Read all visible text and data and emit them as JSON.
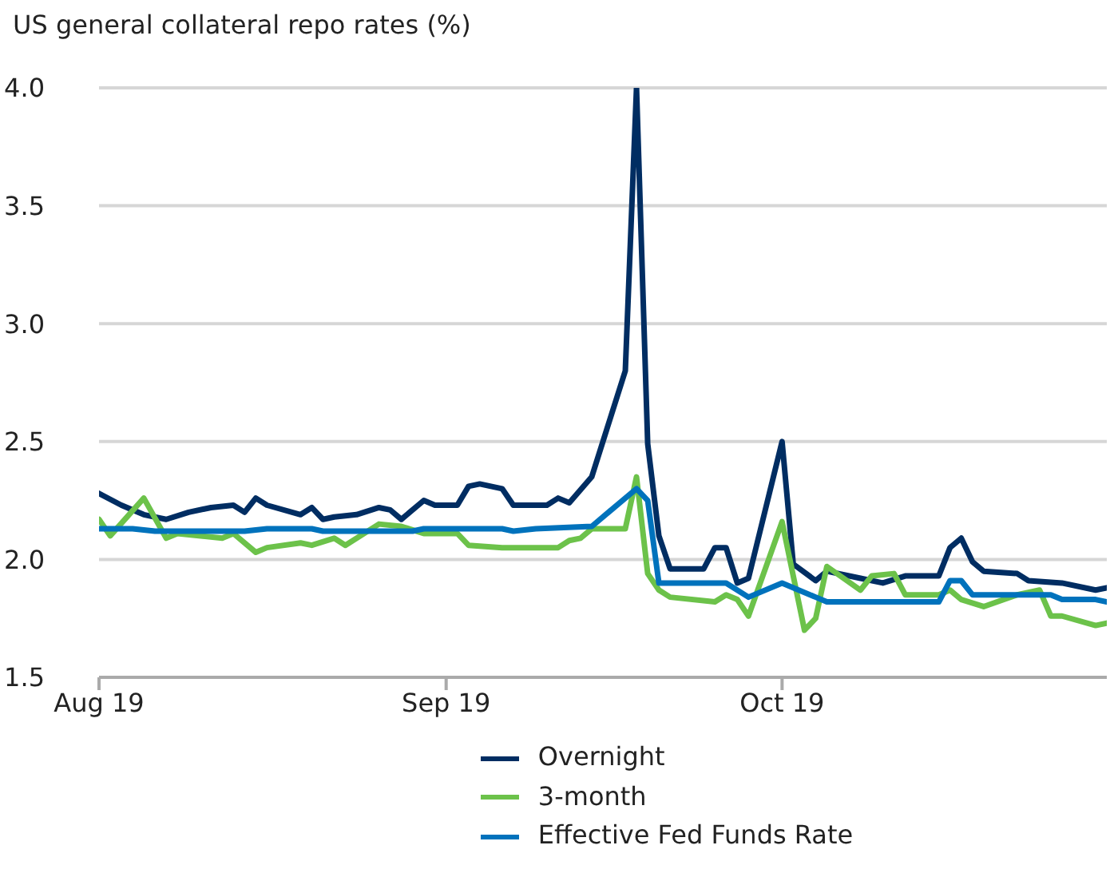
{
  "chart_data": {
    "type": "line",
    "title": "US general collateral repo rates (%)",
    "xlim": [
      "2019-08-01",
      "2019-10-30"
    ],
    "xticks": [
      {
        "value": "2019-08-01",
        "label": "Aug 19"
      },
      {
        "value": "2019-09-01",
        "label": "Sep 19"
      },
      {
        "value": "2019-10-01",
        "label": "Oct 19"
      }
    ],
    "ylim": [
      1.5,
      4.0
    ],
    "yticks": [
      {
        "value": 1.5,
        "label": "1.5"
      },
      {
        "value": 2.0,
        "label": "2.0"
      },
      {
        "value": 2.5,
        "label": "2.5"
      },
      {
        "value": 3.0,
        "label": "3.0"
      },
      {
        "value": 3.5,
        "label": "3.5"
      },
      {
        "value": 4.0,
        "label": "4.0"
      }
    ],
    "grid": "y",
    "legend": "bottom",
    "marker": "none",
    "line_style": "solid",
    "series": [
      {
        "name": "Overnight",
        "color": "#002d62",
        "x": [
          "2019-08-01",
          "2019-08-03",
          "2019-08-05",
          "2019-08-07",
          "2019-08-09",
          "2019-08-11",
          "2019-08-13",
          "2019-08-14",
          "2019-08-15",
          "2019-08-16",
          "2019-08-19",
          "2019-08-20",
          "2019-08-21",
          "2019-08-22",
          "2019-08-24",
          "2019-08-26",
          "2019-08-27",
          "2019-08-28",
          "2019-08-30",
          "2019-08-31",
          "2019-09-02",
          "2019-09-03",
          "2019-09-04",
          "2019-09-06",
          "2019-09-07",
          "2019-09-10",
          "2019-09-11",
          "2019-09-12",
          "2019-09-14",
          "2019-09-17",
          "2019-09-18",
          "2019-09-19",
          "2019-09-20",
          "2019-09-21",
          "2019-09-24",
          "2019-09-25",
          "2019-09-26",
          "2019-09-27",
          "2019-09-28",
          "2019-10-01",
          "2019-10-02",
          "2019-10-04",
          "2019-10-05",
          "2019-10-08",
          "2019-10-10",
          "2019-10-12",
          "2019-10-15",
          "2019-10-16",
          "2019-10-17",
          "2019-10-18",
          "2019-10-19",
          "2019-10-22",
          "2019-10-23",
          "2019-10-26",
          "2019-10-29",
          "2019-10-30"
        ],
        "values": [
          2.28,
          2.23,
          2.19,
          2.17,
          2.2,
          2.22,
          2.23,
          2.2,
          2.26,
          2.23,
          2.19,
          2.22,
          2.17,
          2.18,
          2.19,
          2.22,
          2.21,
          2.17,
          2.25,
          2.23,
          2.23,
          2.31,
          2.32,
          2.3,
          2.23,
          2.23,
          2.26,
          2.24,
          2.35,
          2.8,
          4.0,
          2.49,
          2.1,
          1.96,
          1.96,
          2.05,
          2.05,
          1.9,
          1.92,
          2.5,
          1.98,
          1.91,
          1.95,
          1.92,
          1.9,
          1.93,
          1.93,
          2.05,
          2.09,
          1.99,
          1.95,
          1.94,
          1.91,
          1.9,
          1.87,
          1.88
        ]
      },
      {
        "name": "3-month",
        "color": "#6cc24a",
        "x": [
          "2019-08-01",
          "2019-08-02",
          "2019-08-05",
          "2019-08-07",
          "2019-08-08",
          "2019-08-12",
          "2019-08-13",
          "2019-08-15",
          "2019-08-16",
          "2019-08-19",
          "2019-08-20",
          "2019-08-22",
          "2019-08-23",
          "2019-08-26",
          "2019-08-28",
          "2019-08-30",
          "2019-09-02",
          "2019-09-03",
          "2019-09-06",
          "2019-09-11",
          "2019-09-12",
          "2019-09-13",
          "2019-09-14",
          "2019-09-17",
          "2019-09-18",
          "2019-09-19",
          "2019-09-20",
          "2019-09-21",
          "2019-09-25",
          "2019-09-26",
          "2019-09-27",
          "2019-09-28",
          "2019-10-01",
          "2019-10-03",
          "2019-10-04",
          "2019-10-05",
          "2019-10-08",
          "2019-10-09",
          "2019-10-11",
          "2019-10-12",
          "2019-10-15",
          "2019-10-16",
          "2019-10-17",
          "2019-10-19",
          "2019-10-22",
          "2019-10-24",
          "2019-10-25",
          "2019-10-26",
          "2019-10-29",
          "2019-10-30"
        ],
        "values": [
          2.17,
          2.1,
          2.26,
          2.09,
          2.11,
          2.09,
          2.11,
          2.03,
          2.05,
          2.07,
          2.06,
          2.09,
          2.06,
          2.15,
          2.14,
          2.11,
          2.11,
          2.06,
          2.05,
          2.05,
          2.08,
          2.09,
          2.13,
          2.13,
          2.35,
          1.94,
          1.87,
          1.84,
          1.82,
          1.85,
          1.83,
          1.76,
          2.16,
          1.7,
          1.75,
          1.97,
          1.87,
          1.93,
          1.94,
          1.85,
          1.85,
          1.87,
          1.83,
          1.8,
          1.85,
          1.87,
          1.76,
          1.76,
          1.72,
          1.73
        ]
      },
      {
        "name": "Effective Fed Funds Rate",
        "color": "#0072bc",
        "x": [
          "2019-08-01",
          "2019-08-04",
          "2019-08-06",
          "2019-08-14",
          "2019-08-16",
          "2019-08-20",
          "2019-08-21",
          "2019-08-29",
          "2019-08-30",
          "2019-09-06",
          "2019-09-07",
          "2019-09-09",
          "2019-09-14",
          "2019-09-18",
          "2019-09-19",
          "2019-09-20",
          "2019-09-26",
          "2019-09-28",
          "2019-10-01",
          "2019-10-04",
          "2019-10-05",
          "2019-10-15",
          "2019-10-16",
          "2019-10-17",
          "2019-10-18",
          "2019-10-25",
          "2019-10-26",
          "2019-10-29",
          "2019-10-30"
        ],
        "values": [
          2.13,
          2.13,
          2.12,
          2.12,
          2.13,
          2.13,
          2.12,
          2.12,
          2.13,
          2.13,
          2.12,
          2.13,
          2.14,
          2.3,
          2.25,
          1.9,
          1.9,
          1.84,
          1.9,
          1.84,
          1.82,
          1.82,
          1.91,
          1.91,
          1.85,
          1.85,
          1.83,
          1.83,
          1.82
        ]
      }
    ]
  }
}
